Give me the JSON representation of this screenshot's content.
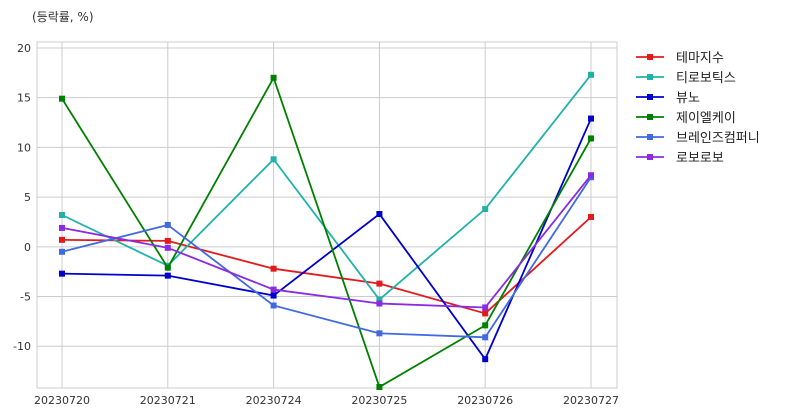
{
  "chart_data": {
    "type": "line",
    "unit_label": "(등락률, %)",
    "categories": [
      "20230720",
      "20230721",
      "20230724",
      "20230725",
      "20230726",
      "20230727"
    ],
    "yticks": [
      "20",
      "15",
      "10",
      "5",
      "0",
      "-5",
      "-10"
    ],
    "ylim": [
      -14.2,
      20.6
    ],
    "grid": true,
    "legend_position": "right",
    "series": [
      {
        "name": "테마지수",
        "color": "#e31a1c",
        "values": [
          0.7,
          0.6,
          -2.2,
          -3.7,
          -6.7,
          3.0
        ]
      },
      {
        "name": "티로보틱스",
        "color": "#20b2aa",
        "values": [
          3.2,
          -1.9,
          8.8,
          -5.3,
          3.8,
          17.3
        ]
      },
      {
        "name": "뷰노",
        "color": "#0000cd",
        "values": [
          -2.7,
          -2.9,
          -4.9,
          3.3,
          -11.3,
          12.9
        ]
      },
      {
        "name": "제이엘케이",
        "color": "#008000",
        "values": [
          14.9,
          -2.1,
          17.0,
          -14.1,
          -7.9,
          10.9
        ]
      },
      {
        "name": "브레인즈컴퍼니",
        "color": "#4169e1",
        "values": [
          -0.5,
          2.2,
          -5.9,
          -8.7,
          -9.1,
          7.0
        ]
      },
      {
        "name": "로보로보",
        "color": "#8a2be2",
        "values": [
          1.9,
          -0.1,
          -4.3,
          -5.7,
          -6.1,
          7.2
        ]
      }
    ]
  }
}
